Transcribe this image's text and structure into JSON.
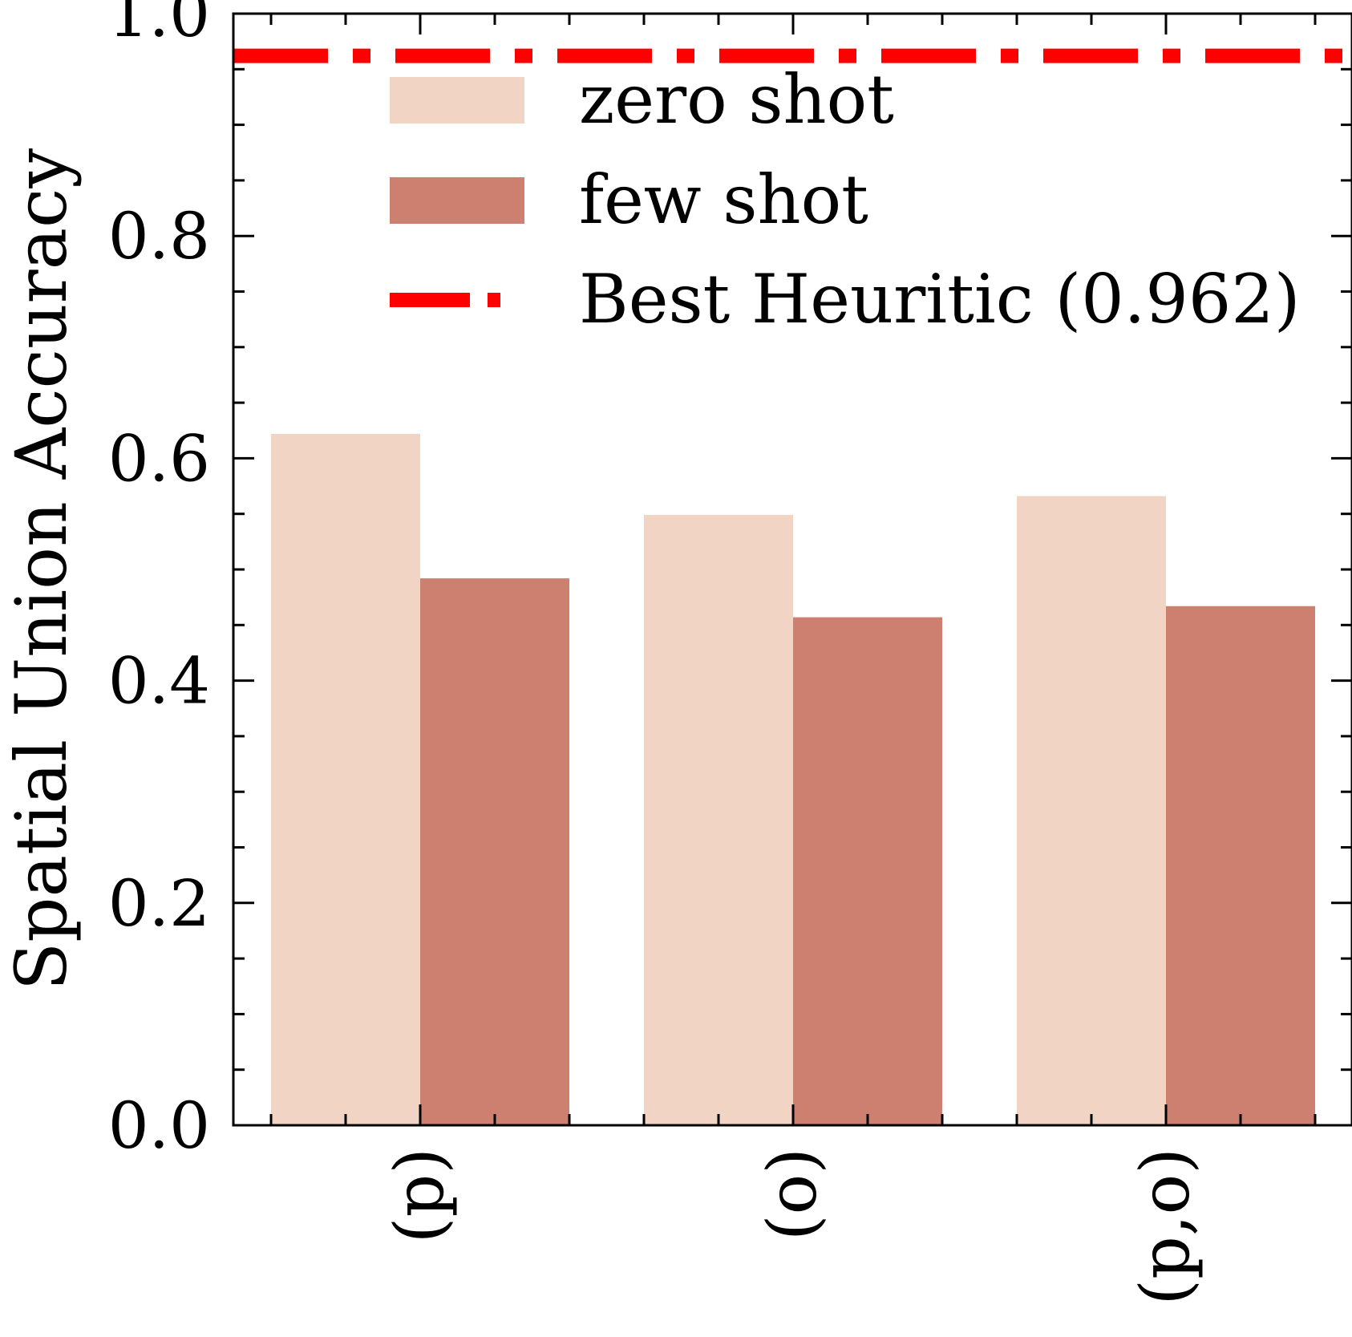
{
  "chart_data": {
    "type": "bar",
    "categories": [
      "(p)",
      "(o)",
      "(p,o)"
    ],
    "series": [
      {
        "name": "zero shot",
        "values": [
          0.622,
          0.549,
          0.566
        ],
        "color": "#f2d4c5"
      },
      {
        "name": "few shot",
        "values": [
          0.492,
          0.457,
          0.467
        ],
        "color": "#cd7f70"
      }
    ],
    "reference_line": {
      "name": "Best Heuritic (0.962)",
      "value": 0.962,
      "color": "#ff0000",
      "style": "dash-dot"
    },
    "ylabel": "Spatial Union Accuracy",
    "ylim": [
      0,
      1.0
    ],
    "yticks": [
      0.0,
      0.2,
      0.4,
      0.6,
      0.8,
      1.0
    ],
    "ytick_labels": [
      "0.0",
      "0.2",
      "0.4",
      "0.6",
      "0.8",
      "1.0"
    ],
    "legend_position": "top-right",
    "grid": false
  }
}
